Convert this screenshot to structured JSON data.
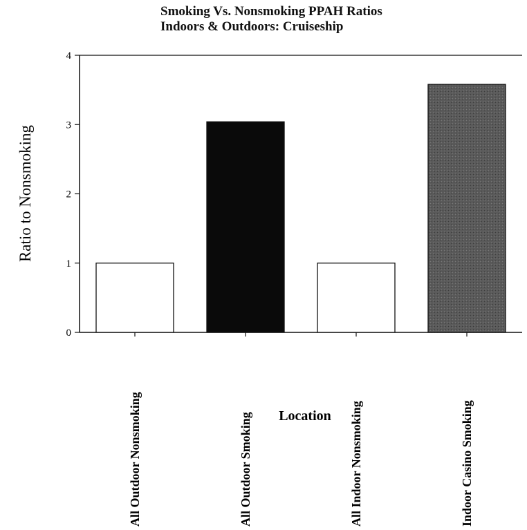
{
  "chart_data": {
    "type": "bar",
    "title_lines": [
      "Smoking Vs. Nonsmoking PPAH Ratios",
      "Indoors & Outdoors:  Cruiseship"
    ],
    "xlabel": "Location",
    "ylabel": "Ratio to Nonsmoking",
    "categories": [
      "All Outdoor Nonsmoking",
      "All Outdoor Smoking",
      "All Indoor Nonsmoking",
      "Indoor Casino Smoking"
    ],
    "values": [
      1.0,
      3.04,
      1.0,
      3.58
    ],
    "bar_colors": [
      "#ffffff",
      "#0a0a0a",
      "#ffffff",
      "#5a5a5a"
    ],
    "ylim": [
      0,
      4
    ],
    "yticks": [
      0,
      1,
      2,
      3,
      4
    ],
    "grid": false,
    "legend": "none"
  }
}
